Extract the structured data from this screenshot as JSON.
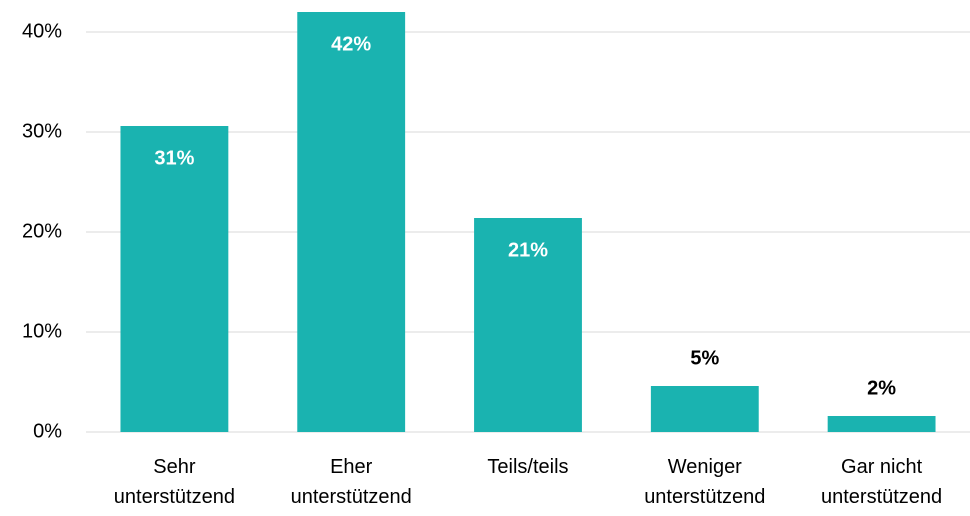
{
  "chart_data": {
    "type": "bar",
    "categories": [
      "Sehr unterstützend",
      "Eher unterstützend",
      "Teils/teils",
      "Weniger unterstützend",
      "Gar nicht unterstützend"
    ],
    "values": [
      30.6,
      42,
      21.4,
      4.6,
      1.6
    ],
    "value_labels": [
      "31%",
      "42%",
      "21%",
      "5%",
      "2%"
    ],
    "color": "#1ab3b0",
    "ylim": [
      0,
      42
    ],
    "yticks": [
      {
        "value": 0,
        "label": "0%"
      },
      {
        "value": 10,
        "label": "10%"
      },
      {
        "value": 20,
        "label": "20%"
      },
      {
        "value": 30,
        "label": "30%"
      },
      {
        "value": 40,
        "label": "40%"
      }
    ],
    "grid": true
  }
}
